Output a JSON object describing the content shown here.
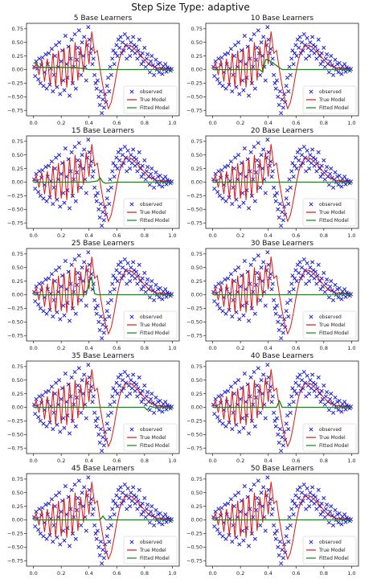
{
  "figure": {
    "suptitle": "Step Size Type: adaptive"
  },
  "colors": {
    "observed": "#1f1fd0",
    "true_model": "#e01414",
    "fitted_model": "#118811"
  },
  "chart_data": {
    "type": "line",
    "layout": "grid 5 rows x 2 columns",
    "shared": {
      "xlim": [
        -0.05,
        1.05
      ],
      "ylim": [
        -0.85,
        0.85
      ],
      "xticks": [
        0.0,
        0.2,
        0.4,
        0.6,
        0.8,
        1.0
      ],
      "xtick_labels": [
        "0.0",
        "0.2",
        "0.4",
        "0.6",
        "0.8",
        "1.0"
      ],
      "yticks": [
        -0.75,
        -0.5,
        -0.25,
        0.0,
        0.25,
        0.5,
        0.75
      ],
      "ytick_labels": [
        "−0.75",
        "−0.50",
        "−0.25",
        "0.00",
        "0.25",
        "0.50",
        "0.75"
      ],
      "grid": false,
      "legend": [
        "observed",
        "True Model",
        "Fitted Model"
      ],
      "legend_placement": "lower-right",
      "observed_marker": "x",
      "true_model": {
        "x": [
          0.0,
          0.02,
          0.04,
          0.06,
          0.08,
          0.1,
          0.12,
          0.14,
          0.16,
          0.18,
          0.2,
          0.22,
          0.24,
          0.26,
          0.28,
          0.3,
          0.32,
          0.34,
          0.36,
          0.38,
          0.4,
          0.42,
          0.44,
          0.46,
          0.48,
          0.5,
          0.52,
          0.54,
          0.56,
          0.58,
          0.6,
          0.62,
          0.64,
          0.66,
          0.68,
          0.7,
          0.72,
          0.74,
          0.76,
          0.78,
          0.8,
          0.82,
          0.84,
          0.86,
          0.88,
          0.9,
          0.92,
          0.94,
          0.96,
          0.98,
          1.0
        ],
        "y": [
          0.0,
          0.12,
          -0.1,
          0.18,
          -0.22,
          0.2,
          -0.28,
          0.3,
          -0.32,
          0.35,
          -0.3,
          0.4,
          -0.33,
          0.45,
          -0.28,
          0.5,
          -0.2,
          0.42,
          -0.05,
          0.55,
          0.1,
          0.7,
          0.3,
          0.35,
          0.0,
          -0.3,
          -0.55,
          -0.72,
          -0.6,
          -0.35,
          -0.05,
          0.2,
          0.35,
          0.42,
          0.45,
          0.44,
          0.4,
          0.35,
          0.3,
          0.24,
          0.18,
          0.13,
          0.09,
          0.06,
          0.04,
          0.03,
          0.02,
          0.02,
          0.01,
          0.01,
          0.0
        ]
      },
      "observed": {
        "x": [
          0.005,
          0.012,
          0.02,
          0.028,
          0.035,
          0.042,
          0.05,
          0.058,
          0.065,
          0.072,
          0.08,
          0.088,
          0.095,
          0.102,
          0.11,
          0.118,
          0.125,
          0.132,
          0.14,
          0.148,
          0.155,
          0.162,
          0.17,
          0.178,
          0.185,
          0.192,
          0.2,
          0.208,
          0.215,
          0.222,
          0.23,
          0.238,
          0.245,
          0.252,
          0.26,
          0.268,
          0.275,
          0.282,
          0.29,
          0.298,
          0.305,
          0.312,
          0.32,
          0.328,
          0.335,
          0.342,
          0.35,
          0.358,
          0.365,
          0.372,
          0.38,
          0.388,
          0.395,
          0.402,
          0.41,
          0.418,
          0.425,
          0.432,
          0.44,
          0.448,
          0.455,
          0.462,
          0.47,
          0.478,
          0.485,
          0.492,
          0.5,
          0.508,
          0.515,
          0.522,
          0.53,
          0.538,
          0.545,
          0.552,
          0.56,
          0.568,
          0.575,
          0.582,
          0.59,
          0.598,
          0.605,
          0.612,
          0.62,
          0.628,
          0.635,
          0.642,
          0.65,
          0.658,
          0.665,
          0.672,
          0.68,
          0.688,
          0.695,
          0.702,
          0.71,
          0.718,
          0.725,
          0.732,
          0.74,
          0.748,
          0.755,
          0.762,
          0.77,
          0.778,
          0.785,
          0.792,
          0.8,
          0.808,
          0.815,
          0.822,
          0.83,
          0.838,
          0.845,
          0.852,
          0.86,
          0.868,
          0.875,
          0.882,
          0.89,
          0.898,
          0.905,
          0.912,
          0.92,
          0.928,
          0.935,
          0.942,
          0.95,
          0.958,
          0.965,
          0.972,
          0.98,
          0.988,
          0.995
        ],
        "y": [
          0.05,
          -0.12,
          0.15,
          0.02,
          -0.18,
          0.2,
          -0.25,
          0.08,
          0.22,
          -0.3,
          -0.05,
          0.28,
          -0.35,
          0.1,
          0.3,
          -0.28,
          0.02,
          0.38,
          -0.4,
          -0.1,
          0.25,
          0.45,
          -0.32,
          0.05,
          0.5,
          -0.45,
          0.15,
          0.35,
          -0.2,
          -0.38,
          0.62,
          0.1,
          -0.15,
          0.42,
          -0.48,
          0.2,
          0.55,
          -0.25,
          0.05,
          0.65,
          -0.35,
          0.18,
          0.4,
          0.72,
          0.3,
          -0.1,
          0.5,
          0.25,
          0.6,
          0.05,
          -0.2,
          0.45,
          0.78,
          0.55,
          0.3,
          0.38,
          0.1,
          0.2,
          -0.1,
          -0.25,
          -0.35,
          -0.2,
          -0.5,
          -0.65,
          -0.4,
          -0.8,
          -0.55,
          -0.7,
          -0.45,
          -0.6,
          -0.3,
          -0.15,
          -0.4,
          0.05,
          -0.1,
          0.2,
          0.35,
          0.1,
          0.3,
          0.45,
          0.25,
          0.55,
          0.4,
          0.6,
          0.3,
          0.5,
          0.35,
          0.65,
          0.45,
          0.2,
          0.58,
          0.4,
          0.25,
          0.5,
          0.35,
          0.6,
          0.45,
          0.3,
          0.42,
          0.2,
          0.35,
          0.55,
          0.25,
          0.1,
          0.3,
          0.15,
          0.4,
          0.05,
          0.2,
          0.28,
          0.1,
          -0.05,
          0.15,
          0.25,
          0.08,
          -0.1,
          0.05,
          0.18,
          0.0,
          0.1,
          -0.05,
          0.12,
          0.02,
          -0.08,
          0.06,
          0.0,
          0.1,
          -0.04,
          0.04,
          0.0,
          0.02,
          -0.02,
          0.01
        ]
      }
    },
    "panels": [
      {
        "title": "5 Base Learners",
        "fitted_model": {
          "x": [
            0.0,
            0.02,
            0.04,
            0.05,
            0.1,
            0.2,
            0.3,
            0.4,
            0.5,
            0.6,
            0.7,
            0.8,
            0.9,
            1.0
          ],
          "y": [
            0.12,
            0.12,
            0.04,
            0.04,
            0.04,
            0.04,
            0.04,
            0.0,
            0.0,
            0.0,
            0.0,
            0.0,
            0.0,
            0.0
          ]
        }
      },
      {
        "title": "10 Base Learners",
        "fitted_model": {
          "x": [
            0.0,
            0.1,
            0.2,
            0.3,
            0.34,
            0.36,
            0.38,
            0.4,
            0.5,
            0.6,
            0.7,
            0.8,
            0.9,
            1.0
          ],
          "y": [
            0.0,
            0.0,
            0.0,
            0.0,
            0.0,
            -0.05,
            0.18,
            0.18,
            0.0,
            0.0,
            0.0,
            0.0,
            0.0,
            0.0
          ]
        }
      },
      {
        "title": "15 Base Learners",
        "fitted_model": {
          "x": [
            0.0,
            0.1,
            0.2,
            0.3,
            0.4,
            0.46,
            0.48,
            0.5,
            0.52,
            0.6,
            0.7,
            0.8,
            0.9,
            1.0
          ],
          "y": [
            0.0,
            0.0,
            0.0,
            0.0,
            0.0,
            0.02,
            0.08,
            0.0,
            -0.02,
            0.0,
            0.0,
            0.0,
            0.0,
            0.0
          ]
        }
      },
      {
        "title": "20 Base Learners",
        "fitted_model": {
          "x": [
            0.0,
            0.2,
            0.4,
            0.6,
            0.8,
            1.0
          ],
          "y": [
            0.0,
            0.0,
            0.0,
            0.0,
            0.0,
            0.0
          ]
        }
      },
      {
        "title": "25 Base Learners",
        "fitted_model": {
          "x": [
            0.0,
            0.1,
            0.2,
            0.3,
            0.38,
            0.4,
            0.42,
            0.44,
            0.46,
            0.5,
            0.6,
            0.7,
            0.8,
            0.9,
            1.0
          ],
          "y": [
            0.0,
            0.0,
            0.0,
            0.0,
            0.0,
            0.25,
            0.3,
            0.02,
            0.0,
            0.0,
            0.0,
            0.0,
            0.0,
            0.0,
            0.0
          ]
        }
      },
      {
        "title": "30 Base Learners",
        "fitted_model": {
          "x": [
            0.0,
            0.2,
            0.4,
            0.6,
            0.8,
            0.9,
            0.92,
            0.94,
            0.96,
            1.0
          ],
          "y": [
            0.0,
            0.0,
            0.0,
            0.0,
            0.0,
            0.0,
            0.0,
            0.05,
            0.0,
            0.0
          ]
        }
      },
      {
        "title": "35 Base Learners",
        "fitted_model": {
          "x": [
            0.0,
            0.2,
            0.4,
            0.6,
            0.8,
            0.82,
            0.84,
            0.86,
            0.9,
            1.0
          ],
          "y": [
            0.0,
            0.0,
            0.0,
            0.0,
            0.0,
            -0.05,
            0.02,
            0.0,
            0.0,
            0.0
          ]
        }
      },
      {
        "title": "40 Base Learners",
        "fitted_model": {
          "x": [
            0.0,
            0.2,
            0.4,
            0.46,
            0.48,
            0.5,
            0.6,
            0.8,
            1.0
          ],
          "y": [
            0.0,
            0.0,
            0.0,
            0.0,
            0.12,
            0.0,
            0.0,
            0.0,
            0.0
          ]
        }
      },
      {
        "title": "45 Base Learners",
        "fitted_model": {
          "x": [
            0.0,
            0.2,
            0.4,
            0.48,
            0.5,
            0.52,
            0.6,
            0.8,
            1.0
          ],
          "y": [
            0.0,
            0.0,
            0.0,
            0.0,
            0.07,
            0.0,
            0.0,
            0.0,
            0.0
          ]
        }
      },
      {
        "title": "50 Base Learners",
        "fitted_model": {
          "x": [
            0.0,
            0.2,
            0.4,
            0.6,
            0.8,
            1.0
          ],
          "y": [
            0.0,
            0.0,
            0.0,
            0.0,
            0.0,
            0.0
          ]
        }
      }
    ]
  }
}
